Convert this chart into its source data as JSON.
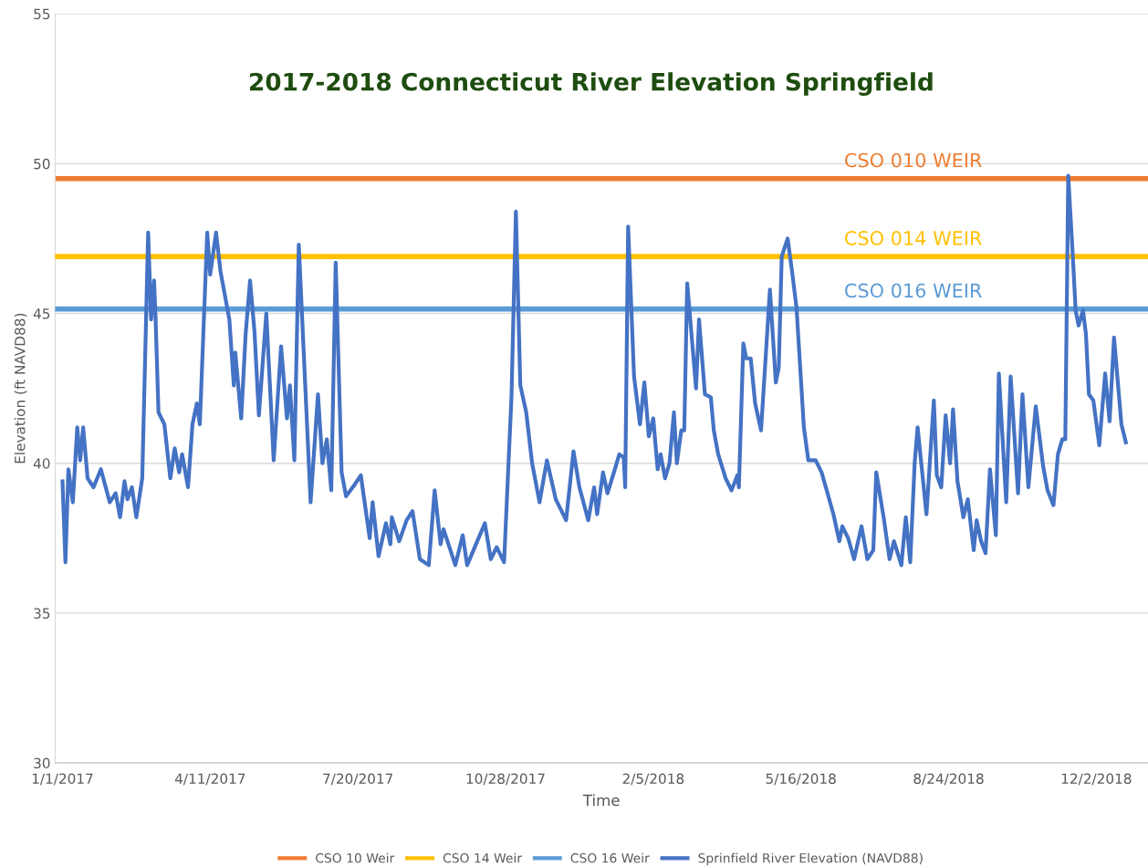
{
  "chart_data": {
    "type": "line",
    "title": "2017-2018 Connecticut River Elevation Springfield",
    "xlabel": "Time",
    "ylabel": "Elevation (ft NAVD88)",
    "xlim": [
      "2016-12-27",
      "2019-01-06"
    ],
    "xticks": [
      {
        "value": "2017-01-01",
        "label": "1/1/2017"
      },
      {
        "value": "2017-04-11",
        "label": "4/11/2017"
      },
      {
        "value": "2017-07-20",
        "label": "7/20/2017"
      },
      {
        "value": "2017-10-28",
        "label": "10/28/2017"
      },
      {
        "value": "2018-02-05",
        "label": "2/5/2018"
      },
      {
        "value": "2018-05-16",
        "label": "5/16/2018"
      },
      {
        "value": "2018-08-24",
        "label": "8/24/2018"
      },
      {
        "value": "2018-12-02",
        "label": "12/2/2018"
      }
    ],
    "ylim": [
      30,
      55
    ],
    "yticks": [
      30,
      35,
      40,
      45,
      50,
      55
    ],
    "grid": "y",
    "legend": "bottom",
    "marker": "none",
    "line_style": "solid",
    "series": [
      {
        "name": "CSO 10 Weir",
        "color": "#ed7d31",
        "x": [
          "2016-12-27",
          "2019-01-06"
        ],
        "values": [
          49.5,
          49.5
        ]
      },
      {
        "name": "CSO 14 Weir",
        "color": "#ffc000",
        "x": [
          "2016-12-27",
          "2019-01-06"
        ],
        "values": [
          46.9,
          46.9
        ]
      },
      {
        "name": "CSO 16 Weir",
        "color": "#5b9bd5",
        "x": [
          "2016-12-27",
          "2019-01-06"
        ],
        "values": [
          45.15,
          45.15
        ]
      },
      {
        "name": "Sprinfield River Elevation (NAVD88)",
        "color": "#4472c4",
        "x": [
          "2017-01-01",
          "2017-01-03",
          "2017-01-05",
          "2017-01-08",
          "2017-01-11",
          "2017-01-13",
          "2017-01-15",
          "2017-01-18",
          "2017-01-22",
          "2017-01-27",
          "2017-02-02",
          "2017-02-06",
          "2017-02-09",
          "2017-02-12",
          "2017-02-14",
          "2017-02-17",
          "2017-02-20",
          "2017-02-24",
          "2017-02-28",
          "2017-03-02",
          "2017-03-04",
          "2017-03-05",
          "2017-03-07",
          "2017-03-11",
          "2017-03-15",
          "2017-03-18",
          "2017-03-21",
          "2017-03-23",
          "2017-03-27",
          "2017-03-30",
          "2017-04-02",
          "2017-04-04",
          "2017-04-09",
          "2017-04-11",
          "2017-04-15",
          "2017-04-18",
          "2017-04-24",
          "2017-04-27",
          "2017-04-28",
          "2017-05-02",
          "2017-05-05",
          "2017-05-08",
          "2017-05-11",
          "2017-05-14",
          "2017-05-19",
          "2017-05-24",
          "2017-05-29",
          "2017-06-02",
          "2017-06-04",
          "2017-06-07",
          "2017-06-10",
          "2017-06-18",
          "2017-06-23",
          "2017-06-26",
          "2017-06-29",
          "2017-07-02",
          "2017-07-05",
          "2017-07-09",
          "2017-07-12",
          "2017-07-18",
          "2017-07-22",
          "2017-07-28",
          "2017-07-30",
          "2017-08-03",
          "2017-08-08",
          "2017-08-11",
          "2017-08-12",
          "2017-08-17",
          "2017-08-22",
          "2017-08-26",
          "2017-08-31",
          "2017-09-06",
          "2017-09-10",
          "2017-09-14",
          "2017-09-16",
          "2017-09-24",
          "2017-09-29",
          "2017-10-02",
          "2017-10-14",
          "2017-10-18",
          "2017-10-22",
          "2017-10-27",
          "2017-11-01",
          "2017-11-04",
          "2017-11-07",
          "2017-11-11",
          "2017-11-15",
          "2017-11-20",
          "2017-11-25",
          "2017-12-01",
          "2017-12-08",
          "2017-12-13",
          "2017-12-17",
          "2017-12-23",
          "2017-12-27",
          "2017-12-29",
          "2018-01-02",
          "2018-01-05",
          "2018-01-10",
          "2018-01-13",
          "2018-01-16",
          "2018-01-17",
          "2018-01-19",
          "2018-01-23",
          "2018-01-27",
          "2018-01-30",
          "2018-02-02",
          "2018-02-05",
          "2018-02-08",
          "2018-02-10",
          "2018-02-13",
          "2018-02-16",
          "2018-02-19",
          "2018-02-21",
          "2018-02-24",
          "2018-02-26",
          "2018-02-28",
          "2018-03-06",
          "2018-03-08",
          "2018-03-12",
          "2018-03-16",
          "2018-03-18",
          "2018-03-21",
          "2018-03-26",
          "2018-03-30",
          "2018-04-03",
          "2018-04-04",
          "2018-04-07",
          "2018-04-09",
          "2018-04-12",
          "2018-04-15",
          "2018-04-19",
          "2018-04-25",
          "2018-04-29",
          "2018-05-01",
          "2018-05-03",
          "2018-05-07",
          "2018-05-10",
          "2018-05-13",
          "2018-05-18",
          "2018-05-21",
          "2018-05-26",
          "2018-05-30",
          "2018-06-03",
          "2018-06-07",
          "2018-06-11",
          "2018-06-13",
          "2018-06-17",
          "2018-06-21",
          "2018-06-26",
          "2018-06-30",
          "2018-07-04",
          "2018-07-06",
          "2018-07-11",
          "2018-07-15",
          "2018-07-18",
          "2018-07-23",
          "2018-07-26",
          "2018-07-29",
          "2018-08-01",
          "2018-08-03",
          "2018-08-09",
          "2018-08-14",
          "2018-08-16",
          "2018-08-19",
          "2018-08-22",
          "2018-08-25",
          "2018-08-27",
          "2018-08-30",
          "2018-09-03",
          "2018-09-06",
          "2018-09-10",
          "2018-09-12",
          "2018-09-15",
          "2018-09-18",
          "2018-09-21",
          "2018-09-25",
          "2018-09-27",
          "2018-10-02",
          "2018-10-05",
          "2018-10-10",
          "2018-10-13",
          "2018-10-17",
          "2018-10-22",
          "2018-10-27",
          "2018-10-30",
          "2018-11-03",
          "2018-11-06",
          "2018-11-09",
          "2018-11-11",
          "2018-11-13",
          "2018-11-16",
          "2018-11-18",
          "2018-11-20",
          "2018-11-23",
          "2018-11-25",
          "2018-11-27",
          "2018-11-30",
          "2018-12-04",
          "2018-12-08",
          "2018-12-11",
          "2018-12-14",
          "2018-12-19",
          "2018-12-22"
        ],
        "values": [
          39.4,
          36.7,
          39.8,
          38.7,
          41.2,
          40.1,
          41.2,
          39.5,
          39.2,
          39.8,
          38.7,
          39.0,
          38.2,
          39.4,
          38.8,
          39.2,
          38.2,
          39.5,
          47.7,
          44.8,
          46.1,
          44.9,
          41.7,
          41.3,
          39.5,
          40.5,
          39.7,
          40.3,
          39.2,
          41.3,
          42.0,
          41.3,
          47.7,
          46.3,
          47.7,
          46.4,
          44.8,
          42.6,
          43.7,
          41.5,
          44.3,
          46.1,
          44.4,
          41.6,
          45.0,
          40.1,
          43.9,
          41.5,
          42.6,
          40.1,
          47.3,
          38.7,
          42.3,
          40.0,
          40.8,
          39.1,
          46.7,
          39.7,
          38.9,
          39.3,
          39.6,
          37.5,
          38.7,
          36.9,
          38.0,
          37.3,
          38.2,
          37.4,
          38.1,
          38.4,
          36.8,
          36.6,
          39.1,
          37.3,
          37.8,
          36.6,
          37.6,
          36.6,
          38.0,
          36.8,
          37.2,
          36.7,
          42.2,
          48.4,
          42.6,
          41.7,
          40.0,
          38.7,
          40.1,
          38.8,
          38.1,
          40.4,
          39.2,
          38.1,
          39.2,
          38.3,
          39.7,
          39.0,
          39.8,
          40.3,
          40.2,
          39.2,
          47.9,
          42.9,
          41.3,
          42.7,
          40.9,
          41.5,
          39.8,
          40.3,
          39.5,
          40.0,
          41.7,
          40.0,
          41.1,
          41.1,
          46.0,
          42.5,
          44.8,
          42.3,
          42.2,
          41.1,
          40.3,
          39.5,
          39.1,
          39.6,
          39.2,
          44.0,
          43.5,
          43.5,
          42.0,
          41.1,
          45.8,
          42.7,
          43.2,
          46.9,
          47.5,
          46.4,
          45.2,
          41.2,
          40.1,
          40.1,
          39.7,
          39.0,
          38.3,
          37.4,
          37.9,
          37.5,
          36.8,
          37.9,
          36.8,
          37.1,
          39.7,
          38.2,
          36.8,
          37.4,
          36.6,
          38.2,
          36.7,
          40.0,
          41.2,
          38.3,
          42.1,
          39.6,
          39.2,
          41.6,
          40.0,
          41.8,
          39.4,
          38.2,
          38.8,
          37.1,
          38.1,
          37.4,
          37.0,
          39.8,
          37.6,
          43.0,
          38.7,
          42.9,
          39.0,
          42.3,
          39.2,
          41.9,
          39.9,
          39.1,
          38.6,
          40.3,
          40.8,
          40.8,
          49.6,
          47.0,
          45.1,
          44.6,
          45.1,
          44.3,
          42.3,
          42.1,
          40.6,
          43.0,
          41.4,
          44.2,
          41.3,
          40.7
        ]
      }
    ],
    "annotations": [
      {
        "text": "CSO 010 WEIR",
        "x": "2018-07-31",
        "y": 49.5
      },
      {
        "text": "CSO 014 WEIR",
        "x": "2018-07-31",
        "y": 46.9
      },
      {
        "text": "CSO 016 WEIR",
        "x": "2018-07-31",
        "y": 45.15
      }
    ]
  }
}
